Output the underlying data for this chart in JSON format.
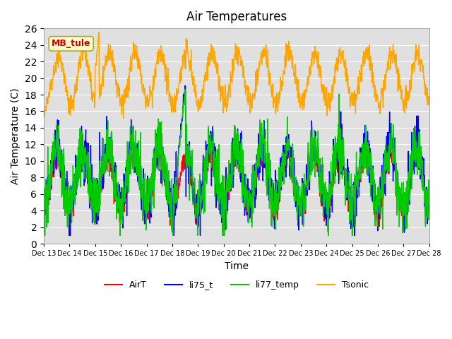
{
  "title": "Air Temperatures",
  "xlabel": "Time",
  "ylabel": "Air Temperature (C)",
  "ylim": [
    0,
    26
  ],
  "yticks": [
    0,
    2,
    4,
    6,
    8,
    10,
    12,
    14,
    16,
    18,
    20,
    22,
    24,
    26
  ],
  "xtick_labels": [
    "Dec 13",
    "Dec 14",
    "Dec 15",
    "Dec 16",
    "Dec 17",
    "Dec 18",
    "Dec 19",
    "Dec 20",
    "Dec 21",
    "Dec 22",
    "Dec 23",
    "Dec 24",
    "Dec 25",
    "Dec 26",
    "Dec 27",
    "Dec 28"
  ],
  "colors": {
    "AirT": "#ff0000",
    "li75_t": "#0000ff",
    "li77_temp": "#00cc00",
    "Tsonic": "#ffa500"
  },
  "annotation_text": "MB_tule",
  "annotation_color": "#cc0000",
  "annotation_bg": "#ffffcc",
  "linewidth": 1.0,
  "title_fontsize": 12,
  "axis_fontsize": 10,
  "legend_fontsize": 9
}
